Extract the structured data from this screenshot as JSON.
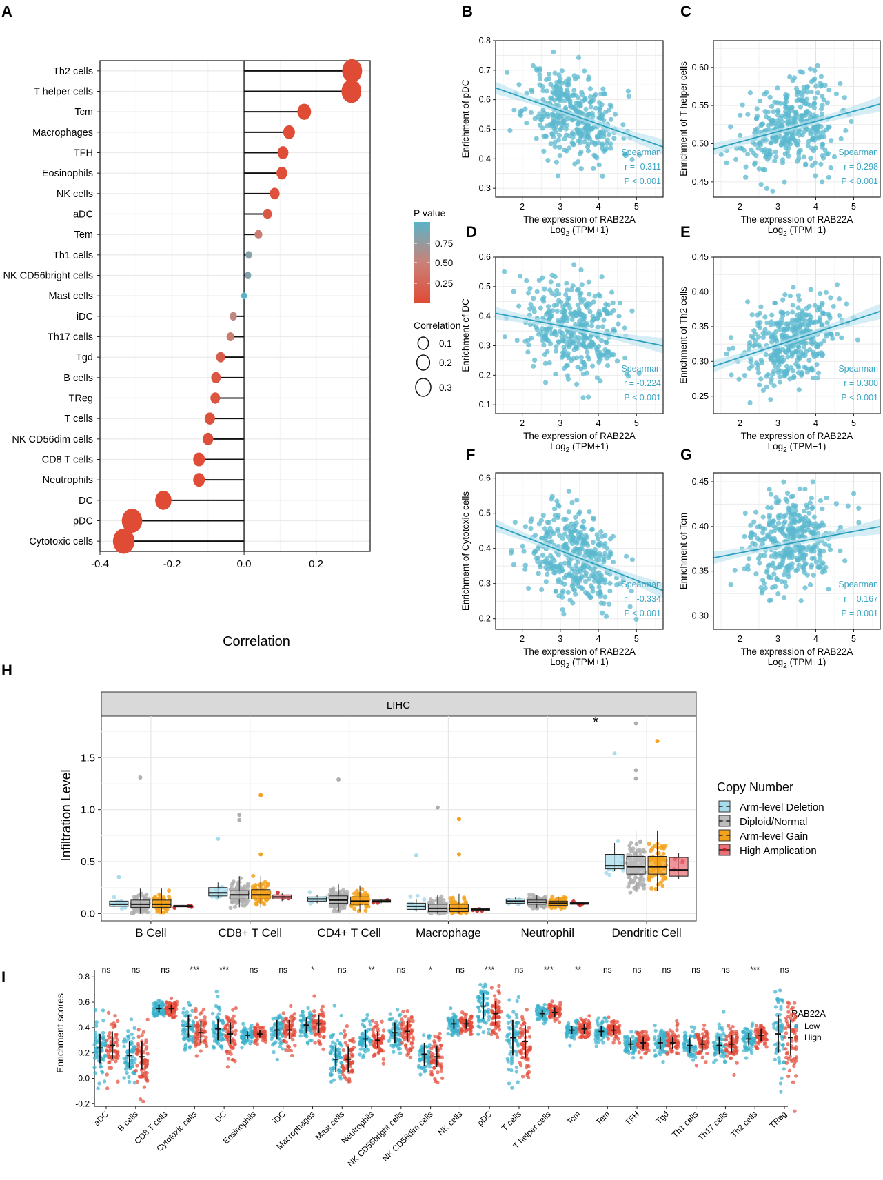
{
  "colors": {
    "lollipop_high_p": "#5AB4C8",
    "lollipop_mid_p": "#C9827A",
    "lollipop_low_p": "#E04B35",
    "scatter_point": "#5BB8CF",
    "scatter_line": "#2A9FBE",
    "scatter_band": "#BFE3EE",
    "stat_text": "#3AA6C4",
    "cn_deletion": "#A8DCEB",
    "cn_normal": "#BDBDBD",
    "cn_gain": "#F4A21C",
    "cn_amplification": "#E8717A",
    "cn_amp_point": "#CC1C1C",
    "low_group": "#3BB0CC",
    "high_group": "#E24A39",
    "strip_header_bg": "#D9D9D9"
  },
  "panel_labels": {
    "A": "A",
    "B": "B",
    "C": "C",
    "D": "D",
    "E": "E",
    "F": "F",
    "G": "G",
    "H": "H",
    "I": "I"
  },
  "chart_data": [
    {
      "id": "A",
      "type": "lollipop",
      "xlabel": "Correlation",
      "xlim": [
        -0.4,
        0.35
      ],
      "xticks": [
        -0.4,
        -0.2,
        0.0,
        0.2
      ],
      "xtick_labels": [
        "-0.4",
        "-0.2",
        "0.0",
        "0.2"
      ],
      "categories": [
        "Th2 cells",
        "T helper cells",
        "Tcm",
        "Macrophages",
        "TFH",
        "Eosinophils",
        "NK cells",
        "aDC",
        "Tem",
        "Th1 cells",
        "NK CD56bright cells",
        "Mast cells",
        "iDC",
        "Th17 cells",
        "Tgd",
        "B cells",
        "TReg",
        "T cells",
        "NK CD56dim cells",
        "CD8 T cells",
        "Neutrophils",
        "DC",
        "pDC",
        "Cytotoxic cells"
      ],
      "values": [
        0.3,
        0.298,
        0.167,
        0.125,
        0.108,
        0.105,
        0.085,
        0.065,
        0.04,
        0.013,
        0.011,
        0.0,
        -0.03,
        -0.038,
        -0.065,
        -0.078,
        -0.08,
        -0.095,
        -0.1,
        -0.125,
        -0.125,
        -0.224,
        -0.311,
        -0.334
      ],
      "p_values": [
        0.0,
        0.0,
        0.001,
        0.01,
        0.02,
        0.03,
        0.05,
        0.1,
        0.45,
        0.8,
        0.82,
        1.0,
        0.55,
        0.45,
        0.15,
        0.1,
        0.09,
        0.05,
        0.04,
        0.01,
        0.01,
        0.0,
        0.0,
        0.0
      ],
      "legend_p": {
        "title": "P value",
        "ticks": [
          "0.75",
          "0.50",
          "0.25"
        ]
      },
      "legend_size": {
        "title": "Correlation",
        "ticks": [
          "0.1",
          "0.2",
          "0.3"
        ]
      }
    },
    {
      "id": "B",
      "type": "scatter",
      "xlabel": "The expression of RAB22A",
      "xlabel2_pre": "Log",
      "xlabel2_sub": "2",
      "xlabel2_post": " (TPM+1)",
      "ylabel": "Enrichment of pDC",
      "xlim": [
        1.3,
        5.7
      ],
      "ylim": [
        0.27,
        0.8
      ],
      "xticks": [
        2,
        3,
        4,
        5
      ],
      "yticks": [
        0.3,
        0.4,
        0.5,
        0.6,
        0.7,
        0.8
      ],
      "ytick_labels": [
        "0.3",
        "0.4",
        "0.5",
        "0.6",
        "0.7",
        "0.8"
      ],
      "fit": {
        "x1": 1.3,
        "y1": 0.64,
        "x2": 5.7,
        "y2": 0.44
      },
      "stats": {
        "method": "Spearman",
        "r": "r = -0.311",
        "p": "P < 0.001"
      }
    },
    {
      "id": "C",
      "type": "scatter",
      "xlabel": "The expression of RAB22A",
      "xlabel2_pre": "Log",
      "xlabel2_sub": "2",
      "xlabel2_post": " (TPM+1)",
      "ylabel": "Enrichment of T helper cells",
      "xlim": [
        1.3,
        5.7
      ],
      "ylim": [
        0.43,
        0.635
      ],
      "xticks": [
        2,
        3,
        4,
        5
      ],
      "yticks": [
        0.45,
        0.5,
        0.55,
        0.6
      ],
      "ytick_labels": [
        "0.45",
        "0.50",
        "0.55",
        "0.60"
      ],
      "fit": {
        "x1": 1.3,
        "y1": 0.493,
        "x2": 5.7,
        "y2": 0.552
      },
      "stats": {
        "method": "Spearman",
        "r": "r = 0.298",
        "p": "P < 0.001"
      }
    },
    {
      "id": "D",
      "type": "scatter",
      "xlabel": "The expression of RAB22A",
      "xlabel2_pre": "Log",
      "xlabel2_sub": "2",
      "xlabel2_post": " (TPM+1)",
      "ylabel": "Enrichment of DC",
      "xlim": [
        1.3,
        5.7
      ],
      "ylim": [
        0.07,
        0.6
      ],
      "xticks": [
        2,
        3,
        4,
        5
      ],
      "yticks": [
        0.1,
        0.2,
        0.3,
        0.4,
        0.5,
        0.6
      ],
      "ytick_labels": [
        "0.1",
        "0.2",
        "0.3",
        "0.4",
        "0.5",
        "0.6"
      ],
      "fit": {
        "x1": 1.3,
        "y1": 0.41,
        "x2": 5.7,
        "y2": 0.3
      },
      "stats": {
        "method": "Spearman",
        "r": "r = -0.224",
        "p": "P < 0.001"
      }
    },
    {
      "id": "E",
      "type": "scatter",
      "xlabel": "The expression of RAB22A",
      "xlabel2_pre": "Log",
      "xlabel2_sub": "2",
      "xlabel2_post": " (TPM+1)",
      "ylabel": "Enrichment of Th2 cells",
      "xlim": [
        1.3,
        5.7
      ],
      "ylim": [
        0.225,
        0.45
      ],
      "xticks": [
        2,
        3,
        4,
        5
      ],
      "yticks": [
        0.25,
        0.3,
        0.35,
        0.4,
        0.45
      ],
      "ytick_labels": [
        "0.25",
        "0.30",
        "0.35",
        "0.40",
        "0.45"
      ],
      "fit": {
        "x1": 1.3,
        "y1": 0.293,
        "x2": 5.7,
        "y2": 0.372
      },
      "stats": {
        "method": "Spearman",
        "r": "r = 0.300",
        "p": "P < 0.001"
      }
    },
    {
      "id": "F",
      "type": "scatter",
      "xlabel": "The expression of RAB22A",
      "xlabel2_pre": "Log",
      "xlabel2_sub": "2",
      "xlabel2_post": " (TPM+1)",
      "ylabel": "Enrichment of Cytotoxic cells",
      "xlim": [
        1.3,
        5.7
      ],
      "ylim": [
        0.17,
        0.615
      ],
      "xticks": [
        2,
        3,
        4,
        5
      ],
      "yticks": [
        0.2,
        0.3,
        0.4,
        0.5,
        0.6
      ],
      "ytick_labels": [
        "0.2",
        "0.3",
        "0.4",
        "0.5",
        "0.6"
      ],
      "fit": {
        "x1": 1.3,
        "y1": 0.465,
        "x2": 5.7,
        "y2": 0.28
      },
      "stats": {
        "method": "Spearman",
        "r": "r = -0.334",
        "p": "P < 0.001"
      }
    },
    {
      "id": "G",
      "type": "scatter",
      "xlabel": "The expression of RAB22A",
      "xlabel2_pre": "Log",
      "xlabel2_sub": "2",
      "xlabel2_post": " (TPM+1)",
      "ylabel": "Enrichment of Tcm",
      "xlim": [
        1.3,
        5.7
      ],
      "ylim": [
        0.285,
        0.46
      ],
      "xticks": [
        2,
        3,
        4,
        5
      ],
      "yticks": [
        0.3,
        0.35,
        0.4,
        0.45
      ],
      "ytick_labels": [
        "0.30",
        "0.35",
        "0.40",
        "0.45"
      ],
      "fit": {
        "x1": 1.3,
        "y1": 0.365,
        "x2": 5.7,
        "y2": 0.4
      },
      "stats": {
        "method": "Spearman",
        "r": "r = 0.167",
        "p": "P = 0.001"
      }
    },
    {
      "id": "H",
      "type": "box",
      "strip_title": "LIHC",
      "ylabel": "Infiltration Level",
      "ylim": [
        -0.07,
        1.9
      ],
      "yticks": [
        0.0,
        0.5,
        1.0,
        1.5
      ],
      "ytick_labels": [
        "0.0",
        "0.5",
        "1.0",
        "1.5"
      ],
      "categories": [
        "B Cell",
        "CD8+ T Cell",
        "CD4+ T Cell",
        "Macrophage",
        "Neutrophil",
        "Dendritic Cell"
      ],
      "significance": [
        {
          "category": "Neutrophil",
          "label": "*"
        }
      ],
      "legend_title": "Copy Number",
      "series": [
        {
          "name": "Arm-level Deletion",
          "boxes": [
            [
              0.05,
              0.07,
              0.09,
              0.12,
              0.15
            ],
            [
              0.15,
              0.17,
              0.2,
              0.25,
              0.3
            ],
            [
              0.1,
              0.12,
              0.14,
              0.16,
              0.18
            ],
            [
              0.02,
              0.04,
              0.07,
              0.1,
              0.14
            ],
            [
              0.09,
              0.1,
              0.12,
              0.14,
              0.16
            ],
            [
              0.41,
              0.43,
              0.46,
              0.57,
              0.68
            ]
          ]
        },
        {
          "name": "Diploid/Normal",
          "boxes": [
            [
              0.0,
              0.06,
              0.09,
              0.13,
              0.24
            ],
            [
              0.06,
              0.14,
              0.18,
              0.22,
              0.36
            ],
            [
              0.02,
              0.1,
              0.13,
              0.17,
              0.28
            ],
            [
              0.0,
              0.02,
              0.05,
              0.09,
              0.18
            ],
            [
              0.05,
              0.09,
              0.11,
              0.13,
              0.18
            ],
            [
              0.2,
              0.38,
              0.45,
              0.55,
              0.8
            ]
          ]
        },
        {
          "name": "Arm-level Gain",
          "boxes": [
            [
              0.0,
              0.06,
              0.09,
              0.13,
              0.24
            ],
            [
              0.06,
              0.14,
              0.18,
              0.23,
              0.36
            ],
            [
              0.02,
              0.09,
              0.12,
              0.16,
              0.27
            ],
            [
              0.0,
              0.02,
              0.05,
              0.09,
              0.19
            ],
            [
              0.05,
              0.08,
              0.1,
              0.12,
              0.17
            ],
            [
              0.22,
              0.38,
              0.45,
              0.55,
              0.8
            ]
          ]
        },
        {
          "name": "High Amplication",
          "boxes": [
            [
              0.06,
              0.065,
              0.07,
              0.08,
              0.09
            ],
            [
              0.12,
              0.14,
              0.16,
              0.18,
              0.2
            ],
            [
              0.1,
              0.11,
              0.12,
              0.13,
              0.14
            ],
            [
              0.02,
              0.03,
              0.04,
              0.05,
              0.06
            ],
            [
              0.08,
              0.09,
              0.1,
              0.105,
              0.11
            ],
            [
              0.33,
              0.36,
              0.42,
              0.54,
              0.58
            ]
          ]
        }
      ]
    },
    {
      "id": "I",
      "type": "dotplot",
      "ylabel": "Enrichment scores",
      "ylim": [
        -0.22,
        0.85
      ],
      "yticks": [
        -0.2,
        0.0,
        0.2,
        0.4,
        0.6,
        0.8
      ],
      "ytick_labels": [
        "-0.2",
        "0.0",
        "0.2",
        "0.4",
        "0.6",
        "0.8"
      ],
      "legend_title": "RAB22A",
      "groups": [
        "Low",
        "High"
      ],
      "categories": [
        "aDC",
        "B cells",
        "CD8 T cells",
        "Cytotoxic cells",
        "DC",
        "Eosinophils",
        "iDC",
        "Macrophages",
        "Mast cells",
        "Neutrophils",
        "NK CD56bright cells",
        "NK CD56dim cells",
        "NK cells",
        "pDC",
        "T cells",
        "T helper cells",
        "Tcm",
        "Tem",
        "TFH",
        "Tgd",
        "Th1 cells",
        "Th17 cells",
        "Th2 cells",
        "TReg"
      ],
      "significance": [
        "ns",
        "ns",
        "ns",
        "***",
        "***",
        "ns",
        "ns",
        "*",
        "ns",
        "**",
        "ns",
        "*",
        "ns",
        "***",
        "ns",
        "***",
        "**",
        "ns",
        "ns",
        "ns",
        "ns",
        "ns",
        "***",
        "ns"
      ],
      "low_stats": [
        [
          0.24,
          0.12,
          0.35
        ],
        [
          0.18,
          0.08,
          0.29
        ],
        [
          0.55,
          0.52,
          0.58
        ],
        [
          0.41,
          0.32,
          0.5
        ],
        [
          0.39,
          0.3,
          0.47
        ],
        [
          0.34,
          0.31,
          0.37
        ],
        [
          0.38,
          0.31,
          0.46
        ],
        [
          0.42,
          0.36,
          0.48
        ],
        [
          0.15,
          0.05,
          0.26
        ],
        [
          0.31,
          0.24,
          0.38
        ],
        [
          0.36,
          0.28,
          0.44
        ],
        [
          0.19,
          0.1,
          0.28
        ],
        [
          0.43,
          0.39,
          0.47
        ],
        [
          0.57,
          0.47,
          0.67
        ],
        [
          0.32,
          0.18,
          0.46
        ],
        [
          0.51,
          0.48,
          0.54
        ],
        [
          0.38,
          0.35,
          0.41
        ],
        [
          0.37,
          0.33,
          0.41
        ],
        [
          0.27,
          0.22,
          0.32
        ],
        [
          0.28,
          0.23,
          0.33
        ],
        [
          0.26,
          0.2,
          0.32
        ],
        [
          0.26,
          0.19,
          0.33
        ],
        [
          0.31,
          0.26,
          0.36
        ],
        [
          0.35,
          0.2,
          0.5
        ]
      ],
      "high_stats": [
        [
          0.26,
          0.15,
          0.37
        ],
        [
          0.17,
          0.07,
          0.29
        ],
        [
          0.55,
          0.52,
          0.58
        ],
        [
          0.36,
          0.28,
          0.45
        ],
        [
          0.35,
          0.27,
          0.44
        ],
        [
          0.35,
          0.32,
          0.38
        ],
        [
          0.38,
          0.31,
          0.46
        ],
        [
          0.43,
          0.36,
          0.5
        ],
        [
          0.15,
          0.05,
          0.25
        ],
        [
          0.3,
          0.24,
          0.37
        ],
        [
          0.37,
          0.29,
          0.45
        ],
        [
          0.17,
          0.09,
          0.26
        ],
        [
          0.43,
          0.39,
          0.47
        ],
        [
          0.51,
          0.42,
          0.61
        ],
        [
          0.29,
          0.16,
          0.42
        ],
        [
          0.52,
          0.48,
          0.56
        ],
        [
          0.39,
          0.35,
          0.43
        ],
        [
          0.38,
          0.34,
          0.42
        ],
        [
          0.28,
          0.23,
          0.33
        ],
        [
          0.28,
          0.23,
          0.33
        ],
        [
          0.27,
          0.21,
          0.33
        ],
        [
          0.27,
          0.2,
          0.34
        ],
        [
          0.34,
          0.29,
          0.39
        ],
        [
          0.32,
          0.18,
          0.46
        ]
      ]
    }
  ]
}
